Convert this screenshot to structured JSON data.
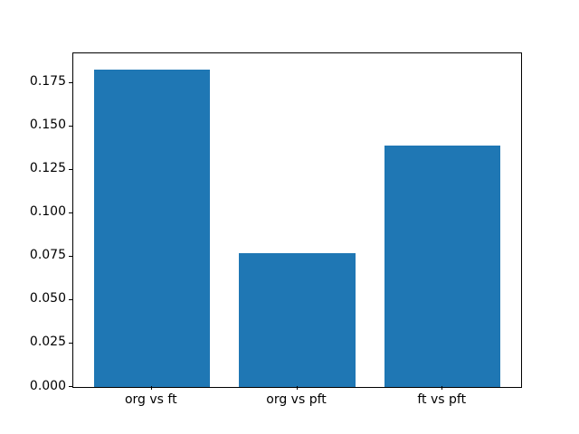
{
  "figure": {
    "background_color": "#ffffff",
    "bar_color": "#1f77b4",
    "spine_color": "#000000"
  },
  "chart_data": {
    "type": "bar",
    "title": "",
    "xlabel": "",
    "ylabel": "",
    "categories": [
      "org vs ft",
      "org vs pft",
      "ft vs pft"
    ],
    "values": [
      0.183,
      0.077,
      0.139
    ],
    "bar_width": 0.8,
    "xlim": [
      -0.54,
      2.54
    ],
    "ylim": [
      0,
      0.19215
    ],
    "yticks": [
      0.0,
      0.025,
      0.05,
      0.075,
      0.1,
      0.125,
      0.15,
      0.175
    ],
    "ytick_labels": [
      "0.000",
      "0.025",
      "0.050",
      "0.075",
      "0.100",
      "0.125",
      "0.150",
      "0.175"
    ],
    "grid": false,
    "legend": false
  }
}
